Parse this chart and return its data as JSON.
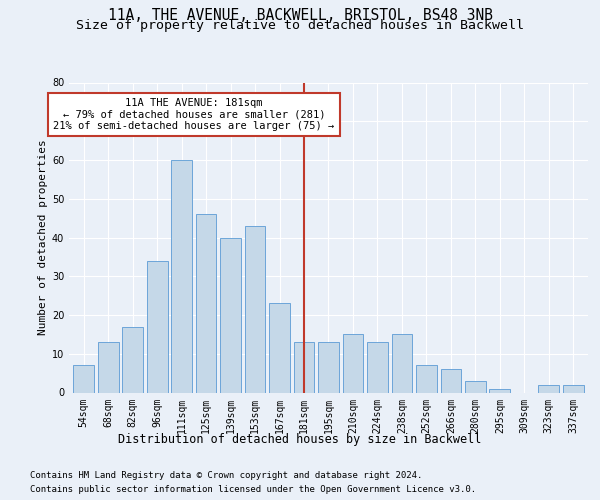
{
  "title1": "11A, THE AVENUE, BACKWELL, BRISTOL, BS48 3NB",
  "title2": "Size of property relative to detached houses in Backwell",
  "xlabel": "Distribution of detached houses by size in Backwell",
  "ylabel": "Number of detached properties",
  "categories": [
    "54sqm",
    "68sqm",
    "82sqm",
    "96sqm",
    "111sqm",
    "125sqm",
    "139sqm",
    "153sqm",
    "167sqm",
    "181sqm",
    "195sqm",
    "210sqm",
    "224sqm",
    "238sqm",
    "252sqm",
    "266sqm",
    "280sqm",
    "295sqm",
    "309sqm",
    "323sqm",
    "337sqm"
  ],
  "values": [
    7,
    13,
    17,
    34,
    60,
    46,
    40,
    43,
    23,
    13,
    13,
    15,
    13,
    15,
    7,
    6,
    3,
    1,
    0,
    2,
    2
  ],
  "bar_color": "#c5d8e8",
  "bar_edge_color": "#5b9bd5",
  "vline_x_index": 9,
  "vline_color": "#c0392b",
  "annotation_line1": "11A THE AVENUE: 181sqm",
  "annotation_line2": "← 79% of detached houses are smaller (281)",
  "annotation_line3": "21% of semi-detached houses are larger (75) →",
  "annotation_box_color": "#ffffff",
  "annotation_box_edge": "#c0392b",
  "ylim": [
    0,
    80
  ],
  "yticks": [
    0,
    10,
    20,
    30,
    40,
    50,
    60,
    70,
    80
  ],
  "bg_color": "#eaf0f8",
  "plot_bg_color": "#eaf0f8",
  "footer1": "Contains HM Land Registry data © Crown copyright and database right 2024.",
  "footer2": "Contains public sector information licensed under the Open Government Licence v3.0.",
  "title1_fontsize": 10.5,
  "title2_fontsize": 9.5,
  "xlabel_fontsize": 8.5,
  "ylabel_fontsize": 8,
  "tick_fontsize": 7,
  "footer_fontsize": 6.5,
  "annotation_fontsize": 7.5
}
